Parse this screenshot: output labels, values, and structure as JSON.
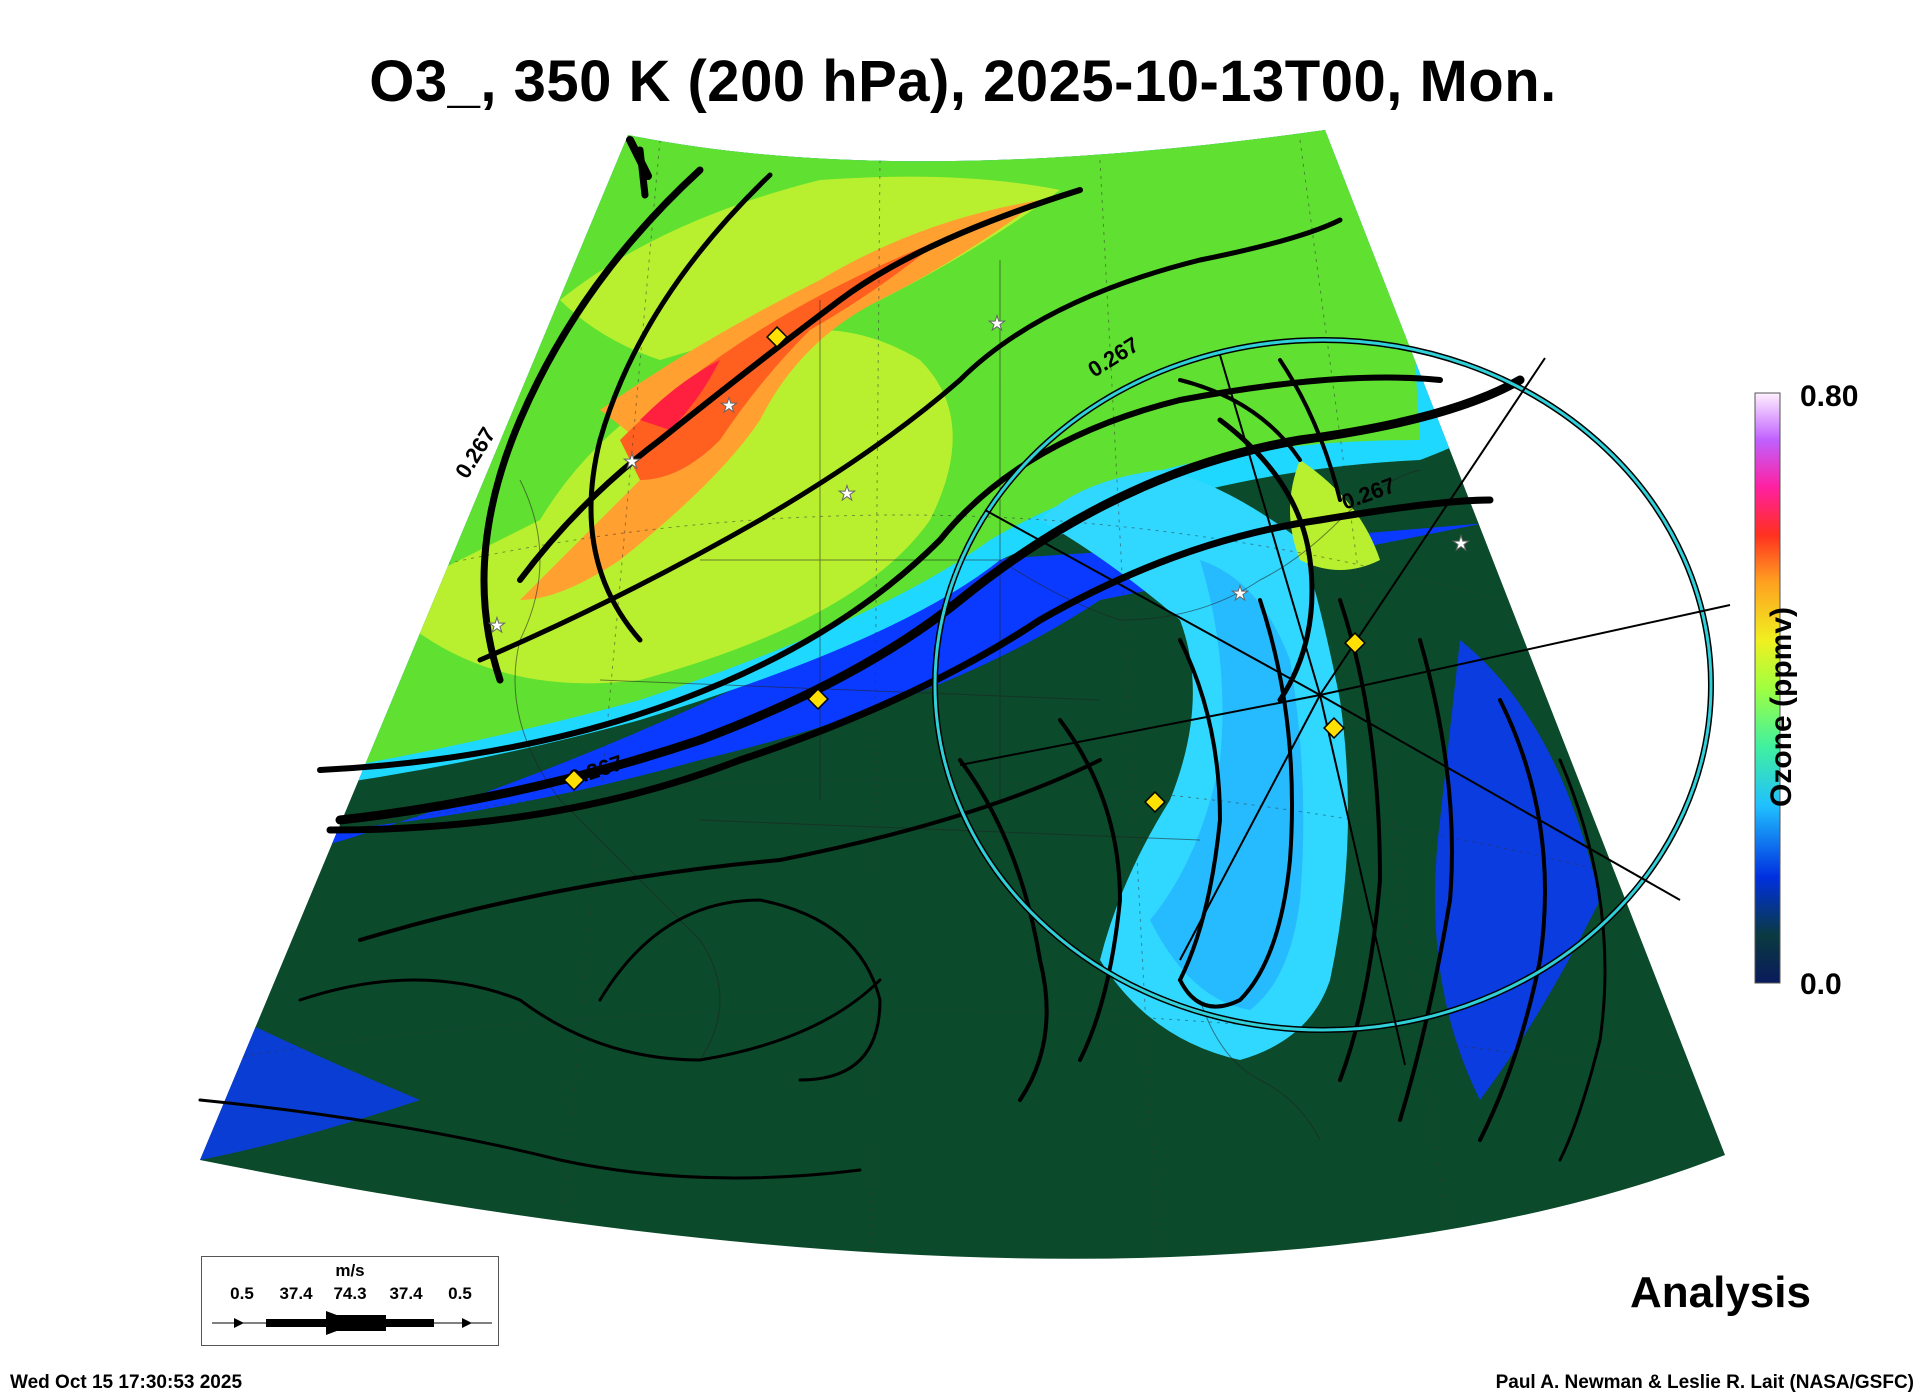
{
  "title": "O3_, 350 K (200 hPa), 2025-10-13T00, Mon.",
  "colorbar": {
    "max_label": "0.80",
    "min_label": "0.0",
    "title": "Ozone (ppmv)",
    "colors": [
      "#0a1a5c",
      "#0a2e8a",
      "#0040e0",
      "#1080ff",
      "#20c8ff",
      "#40e8c0",
      "#60ff80",
      "#a0ff40",
      "#e0f020",
      "#ffc020",
      "#ff7010",
      "#ff2020",
      "#ff2080",
      "#c040ff",
      "#e0a0ff",
      "#fff0ff"
    ]
  },
  "map": {
    "contour_label": "0.267",
    "colors": {
      "low_ozone": "#0b4a2a",
      "blue_band": "#0a3aff",
      "cyan": "#30d8ff",
      "green": "#60e030",
      "yellow_green": "#b8f030",
      "orange": "#ffa030",
      "red": "#ff3020",
      "circle": "#30d0d8",
      "marker": "#ffe000"
    },
    "marker_icons": [
      "diamond-marker-icon",
      "star-marker-icon"
    ]
  },
  "wind_legend": {
    "unit": "m/s",
    "values": [
      "0.5",
      "37.4",
      "74.3",
      "37.4",
      "0.5"
    ]
  },
  "analysis_label": "Analysis",
  "timestamp": "Wed Oct 15 17:30:53 2025",
  "credit": "Paul A. Newman & Leslie R. Lait (NASA/GSFC)"
}
